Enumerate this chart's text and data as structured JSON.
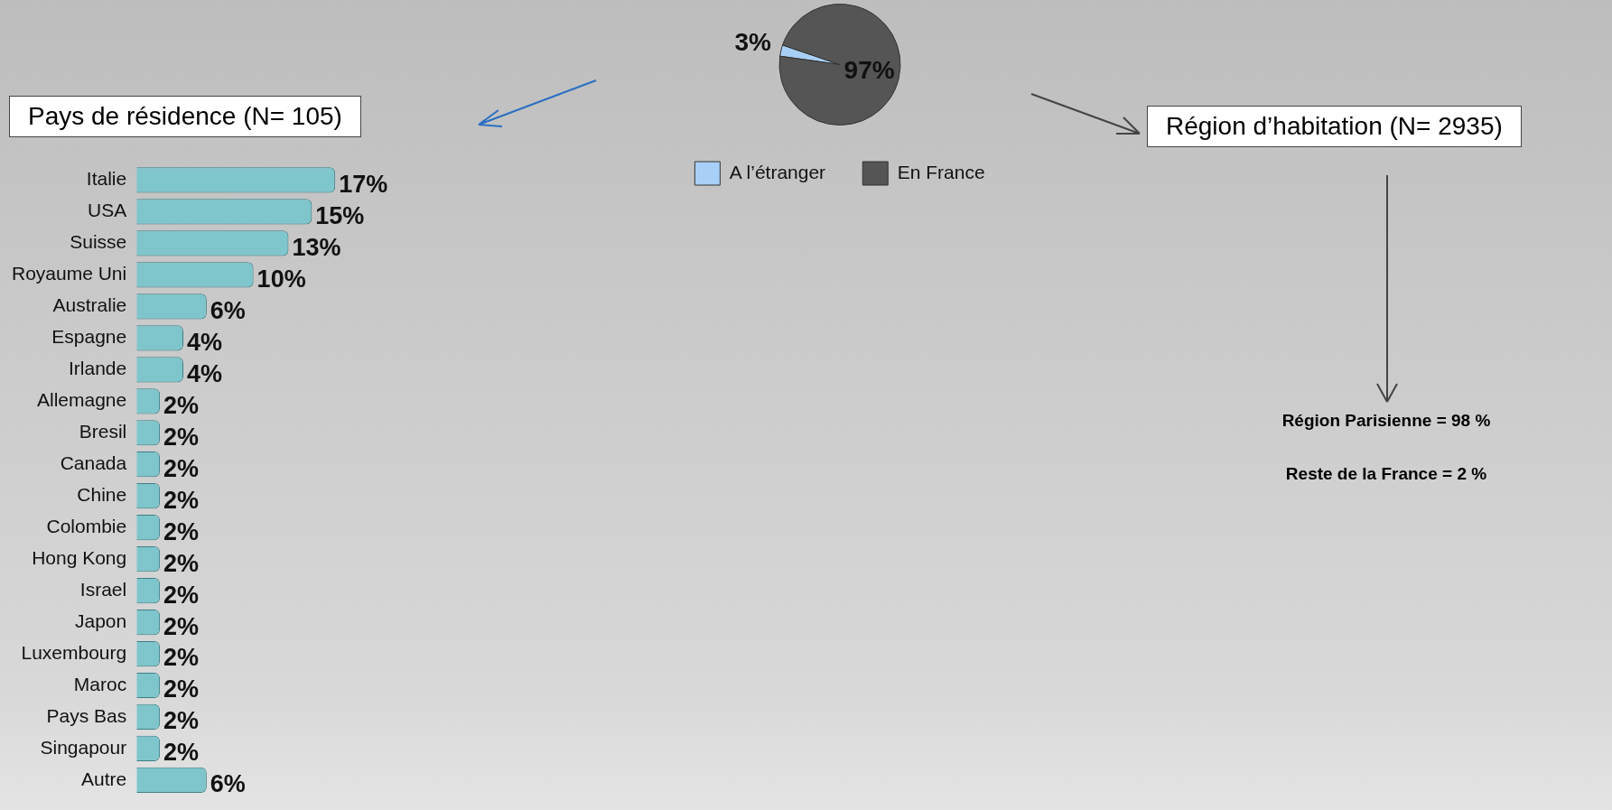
{
  "chart_data": [
    {
      "type": "pie",
      "categories": [
        "A l’étranger",
        "En France"
      ],
      "values": [
        3,
        97
      ],
      "colors": [
        "#a8cff5",
        "#555555"
      ],
      "value_labels": [
        "3%",
        "97%"
      ],
      "legend": "bottom"
    },
    {
      "type": "bar",
      "orientation": "horizontal",
      "title": "Pays de résidence (N= 105)",
      "categories": [
        "Italie",
        "USA",
        "Suisse",
        "Royaume Uni",
        "Australie",
        "Espagne",
        "Irlande",
        "Allemagne",
        "Bresil",
        "Canada",
        "Chine",
        "Colombie",
        "Hong Kong",
        "Israel",
        "Japon",
        "Luxembourg",
        "Maroc",
        "Pays Bas",
        "Singapour",
        "Autre"
      ],
      "values": [
        17,
        15,
        13,
        10,
        6,
        4,
        4,
        2,
        2,
        2,
        2,
        2,
        2,
        2,
        2,
        2,
        2,
        2,
        2,
        6
      ],
      "color": "#7fc6cc",
      "value_labels": [
        "17%",
        "15%",
        "13%",
        "10%",
        "6%",
        "4%",
        "4%",
        "2%",
        "2%",
        "2%",
        "2%",
        "2%",
        "2%",
        "2%",
        "2%",
        "2%",
        "2%",
        "2%",
        "2%",
        "6%"
      ]
    },
    {
      "type": "other",
      "title": "Région d’habitation (N= 2935)",
      "annotations": [
        "Région Parisienne = 98 %",
        "Reste de la France = 2 %"
      ]
    }
  ]
}
